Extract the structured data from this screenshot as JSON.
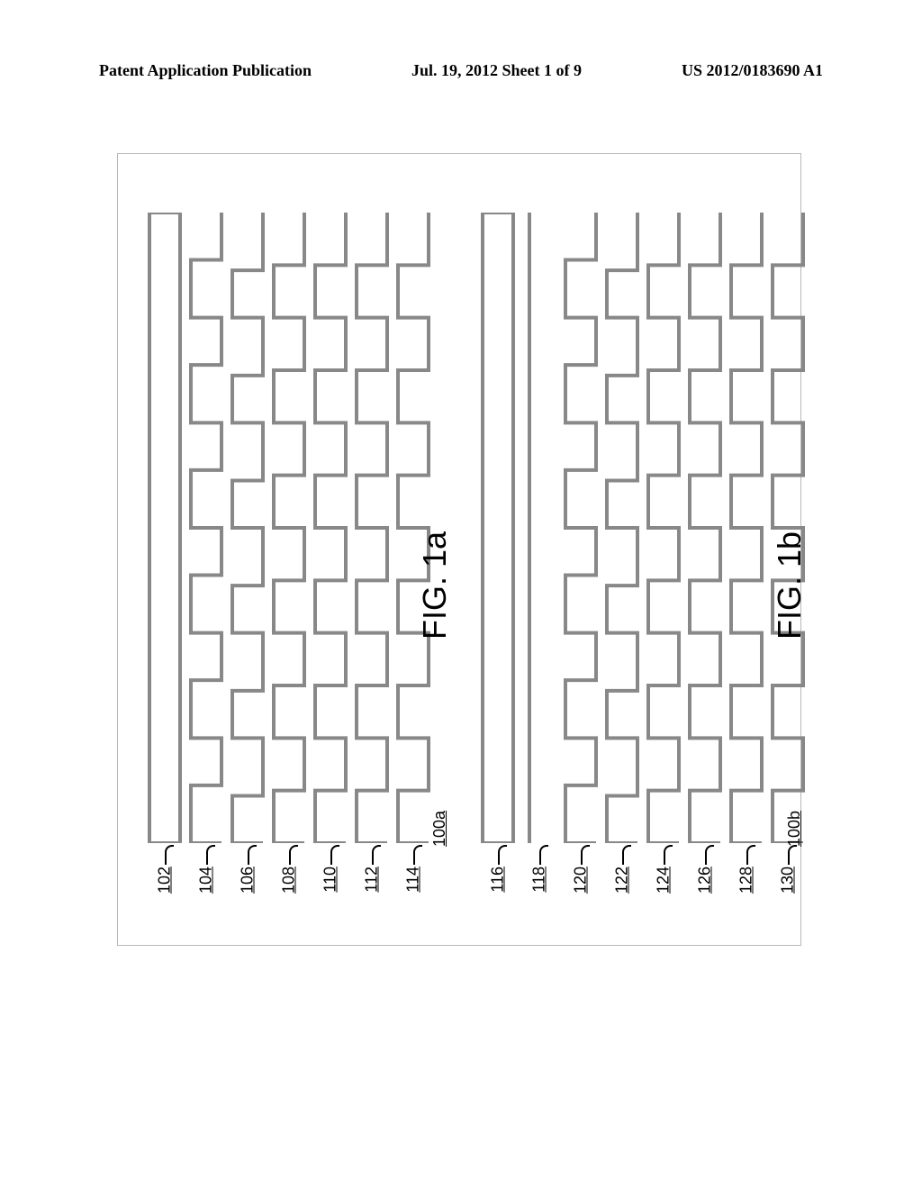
{
  "header": {
    "left": "Patent Application Publication",
    "center": "Jul. 19, 2012  Sheet 1 of 9",
    "right": "US 2012/0183690 A1"
  },
  "figure_a": {
    "id": "100a",
    "label": "FIG. 1a",
    "signals": [
      {
        "ref": "102",
        "type": "flat_high"
      },
      {
        "ref": "104",
        "type": "clock",
        "periods": 6,
        "duty": 0.55
      },
      {
        "ref": "106",
        "type": "clock",
        "periods": 6,
        "duty": 0.45
      },
      {
        "ref": "108",
        "type": "clock",
        "periods": 6,
        "duty": 0.5
      },
      {
        "ref": "110",
        "type": "clock",
        "periods": 6,
        "duty": 0.5
      },
      {
        "ref": "112",
        "type": "clock",
        "periods": 6,
        "duty": 0.5
      },
      {
        "ref": "114",
        "type": "clock",
        "periods": 6,
        "duty": 0.5
      }
    ]
  },
  "figure_b": {
    "id": "100b",
    "label": "FIG. 1b",
    "signals": [
      {
        "ref": "116",
        "type": "flat_high"
      },
      {
        "ref": "118",
        "type": "flat_high_thin"
      },
      {
        "ref": "120",
        "type": "clock",
        "periods": 6,
        "duty": 0.55
      },
      {
        "ref": "122",
        "type": "clock",
        "periods": 6,
        "duty": 0.45
      },
      {
        "ref": "124",
        "type": "clock",
        "periods": 6,
        "duty": 0.5
      },
      {
        "ref": "126",
        "type": "clock",
        "periods": 6,
        "duty": 0.5
      },
      {
        "ref": "128",
        "type": "clock",
        "periods": 6,
        "duty": 0.5
      },
      {
        "ref": "130",
        "type": "clock",
        "periods": 6,
        "duty": 0.5
      }
    ]
  },
  "style": {
    "wave_stroke": "#888888",
    "wave_stroke_width": 4,
    "border_color": "#b8b8b8"
  }
}
